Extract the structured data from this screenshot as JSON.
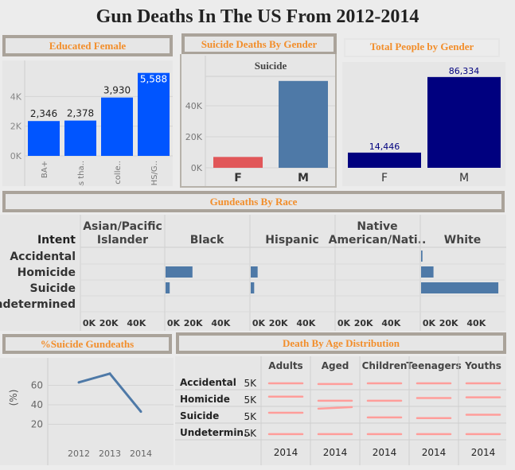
{
  "dashboard": {
    "title": "Gun Deaths In The US From 2012-2014"
  },
  "educated_female": {
    "header": "Educated Female",
    "color": "#0055ff",
    "chart_data": {
      "type": "bar",
      "categories": [
        "BA+",
        "Less tha..",
        "Some colle..",
        "HS/G.."
      ],
      "values": [
        2346,
        2378,
        3930,
        5588
      ],
      "value_labels": [
        "2,346",
        "2,378",
        "3,930",
        "5,588"
      ],
      "yticks": [
        "0K",
        "2K",
        "4K"
      ],
      "ylim": [
        0,
        6000
      ]
    }
  },
  "suicide_by_gender": {
    "header": "Suicide Deaths By Gender",
    "panel_title": "Suicide",
    "colors": {
      "F": "#e15759",
      "M": "#4e79a7"
    },
    "chart_data": {
      "type": "bar",
      "categories": [
        "F",
        "M"
      ],
      "values": [
        7000,
        56000
      ],
      "yticks": [
        "0K",
        "20K",
        "40K"
      ],
      "ylim": [
        0,
        60000
      ]
    }
  },
  "total_by_gender": {
    "header": "Total People by Gender",
    "color": "#00007f",
    "chart_data": {
      "type": "bar",
      "categories": [
        "F",
        "M"
      ],
      "values": [
        14446,
        86334
      ],
      "value_labels": [
        "14,446",
        "86,334"
      ],
      "ylim": [
        0,
        90000
      ]
    }
  },
  "by_race": {
    "header": "Gundeaths By Race",
    "row_header": "Intent",
    "color": "#4e79a7",
    "races": [
      "Asian/Pacific Islander",
      "Black",
      "Hispanic",
      "Native American/Nati..",
      "White"
    ],
    "intents": [
      "Accidental",
      "Homicide",
      "Suicide",
      "Undetermined"
    ],
    "xticks": [
      "0K",
      "20K",
      "40K"
    ],
    "chart_data": {
      "type": "bar",
      "orientation": "horizontal",
      "xlim": [
        0,
        60000
      ],
      "values": {
        "Asian/Pacific Islander": [
          0,
          0,
          0,
          0
        ],
        "Black": [
          0,
          19500,
          3000,
          0
        ],
        "Hispanic": [
          0,
          5000,
          2500,
          0
        ],
        "Native American/Nati..": [
          0,
          0,
          0,
          0
        ],
        "White": [
          1000,
          9000,
          56000,
          0
        ]
      }
    }
  },
  "pct_suicide": {
    "header": "%Suicide Gundeaths",
    "ylabel": "(%)",
    "color": "#4e79a7",
    "chart_data": {
      "type": "line",
      "x": [
        "2012",
        "2013",
        "2014"
      ],
      "values": [
        63,
        72,
        33
      ],
      "yticks": [
        "20",
        "40",
        "60"
      ],
      "ylim": [
        0,
        80
      ]
    }
  },
  "age_dist": {
    "header": "Death By Age Distribution",
    "columns": [
      "Adults",
      "Aged",
      "Children",
      "Teenagers",
      "Youths"
    ],
    "rows": [
      "Accidental",
      "Homicide",
      "Suicide",
      "Undetermin.."
    ],
    "row_axis_label": "5K",
    "x_label": "2014",
    "color": "#ff9d9a",
    "chart_data": {
      "type": "line",
      "note_values": "approximate",
      "values": {
        "Accidental": [
          0.35,
          0.3,
          0.35,
          0.35,
          0.35
        ],
        "Homicide": [
          0.6,
          0.3,
          0.3,
          0.5,
          0.55
        ],
        "Suicide": [
          0.65,
          0.95,
          0.3,
          0.25,
          0.5
        ],
        "Undetermin..": [
          0.3,
          0.3,
          0.3,
          0.3,
          0.3
        ]
      }
    }
  }
}
